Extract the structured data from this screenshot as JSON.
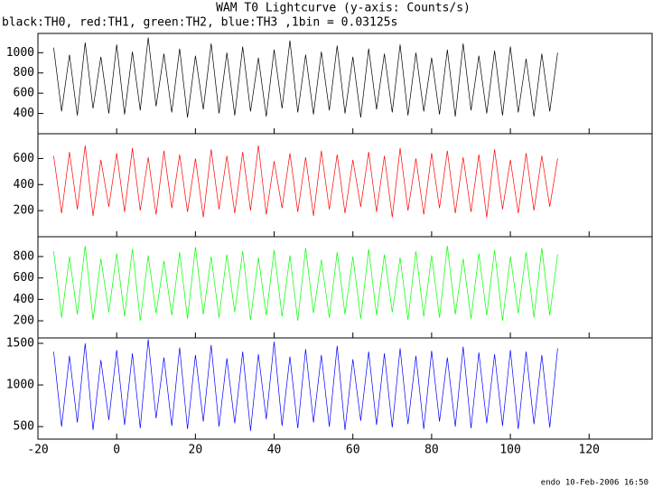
{
  "chart_data": {
    "type": "line",
    "title": "WAM T0 Lightcurve (y-axis: Counts/s)",
    "subtitle": "black:TH0, red:TH1, green:TH2, blue:TH3 ,1bin = 0.03125s",
    "footer": "endo 10-Feb-2006 16:50",
    "xlim": [
      -20,
      136
    ],
    "xticks": [
      -20,
      0,
      20,
      40,
      60,
      80,
      100,
      120
    ],
    "x": [
      -16,
      -14,
      -12,
      -10,
      -8,
      -6,
      -4,
      -2,
      0,
      2,
      4,
      6,
      8,
      10,
      12,
      14,
      16,
      18,
      20,
      22,
      24,
      26,
      28,
      30,
      32,
      34,
      36,
      38,
      40,
      42,
      44,
      46,
      48,
      50,
      52,
      54,
      56,
      58,
      60,
      62,
      64,
      66,
      68,
      70,
      72,
      74,
      76,
      78,
      80,
      82,
      84,
      86,
      88,
      90,
      92,
      94,
      96,
      98,
      100,
      102,
      104,
      106,
      108,
      110,
      112
    ],
    "series": [
      {
        "color": "#000000",
        "ylim": [
          200,
          1190
        ],
        "yticks": [
          400,
          600,
          800,
          1000
        ],
        "values": [
          1050,
          420,
          980,
          380,
          1100,
          450,
          960,
          400,
          1080,
          390,
          1010,
          430,
          1150,
          470,
          990,
          410,
          1040,
          360,
          970,
          440,
          1090,
          400,
          1000,
          380,
          1060,
          420,
          950,
          370,
          1030,
          450,
          1120,
          410,
          980,
          390,
          1010,
          430,
          1070,
          400,
          960,
          360,
          1040,
          440,
          990,
          410,
          1080,
          380,
          1000,
          420,
          950,
          390,
          1030,
          370,
          1090,
          430,
          970,
          400,
          1020,
          380,
          1060,
          410,
          940,
          370,
          990,
          420,
          1000
        ]
      },
      {
        "color": "#ff0000",
        "ylim": [
          0,
          790
        ],
        "yticks": [
          200,
          400,
          600
        ],
        "values": [
          620,
          180,
          650,
          210,
          700,
          160,
          590,
          230,
          640,
          190,
          680,
          200,
          610,
          170,
          660,
          220,
          630,
          190,
          600,
          150,
          670,
          210,
          620,
          180,
          650,
          200,
          700,
          170,
          580,
          220,
          640,
          190,
          610,
          160,
          660,
          210,
          630,
          180,
          590,
          230,
          650,
          190,
          620,
          150,
          680,
          200,
          600,
          170,
          640,
          220,
          660,
          180,
          610,
          190,
          630,
          150,
          670,
          210,
          590,
          180,
          640,
          200,
          620,
          230,
          600
        ]
      },
      {
        "color": "#00ff00",
        "ylim": [
          40,
          985
        ],
        "yticks": [
          200,
          400,
          600,
          800
        ],
        "values": [
          850,
          230,
          800,
          260,
          900,
          210,
          780,
          280,
          830,
          240,
          870,
          200,
          810,
          270,
          760,
          250,
          840,
          220,
          890,
          260,
          800,
          230,
          820,
          280,
          850,
          210,
          790,
          250,
          860,
          240,
          810,
          200,
          880,
          270,
          770,
          230,
          840,
          260,
          800,
          220,
          870,
          250,
          820,
          280,
          790,
          210,
          850,
          240,
          810,
          230,
          900,
          260,
          780,
          220,
          830,
          250,
          860,
          200,
          800,
          270,
          840,
          230,
          880,
          250,
          820
        ]
      },
      {
        "color": "#0000ff",
        "ylim": [
          350,
          1565
        ],
        "yticks": [
          500,
          1000,
          1500
        ],
        "values": [
          1400,
          500,
          1350,
          550,
          1500,
          460,
          1300,
          580,
          1420,
          520,
          1380,
          480,
          1550,
          600,
          1330,
          510,
          1450,
          470,
          1360,
          560,
          1480,
          500,
          1320,
          540,
          1400,
          450,
          1370,
          590,
          1520,
          510,
          1340,
          480,
          1430,
          550,
          1360,
          500,
          1470,
          460,
          1310,
          570,
          1400,
          520,
          1380,
          490,
          1440,
          530,
          1350,
          470,
          1410,
          560,
          1330,
          500,
          1460,
          480,
          1390,
          540,
          1370,
          510,
          1420,
          470,
          1400,
          530,
          1360,
          490,
          1440
        ]
      }
    ]
  }
}
